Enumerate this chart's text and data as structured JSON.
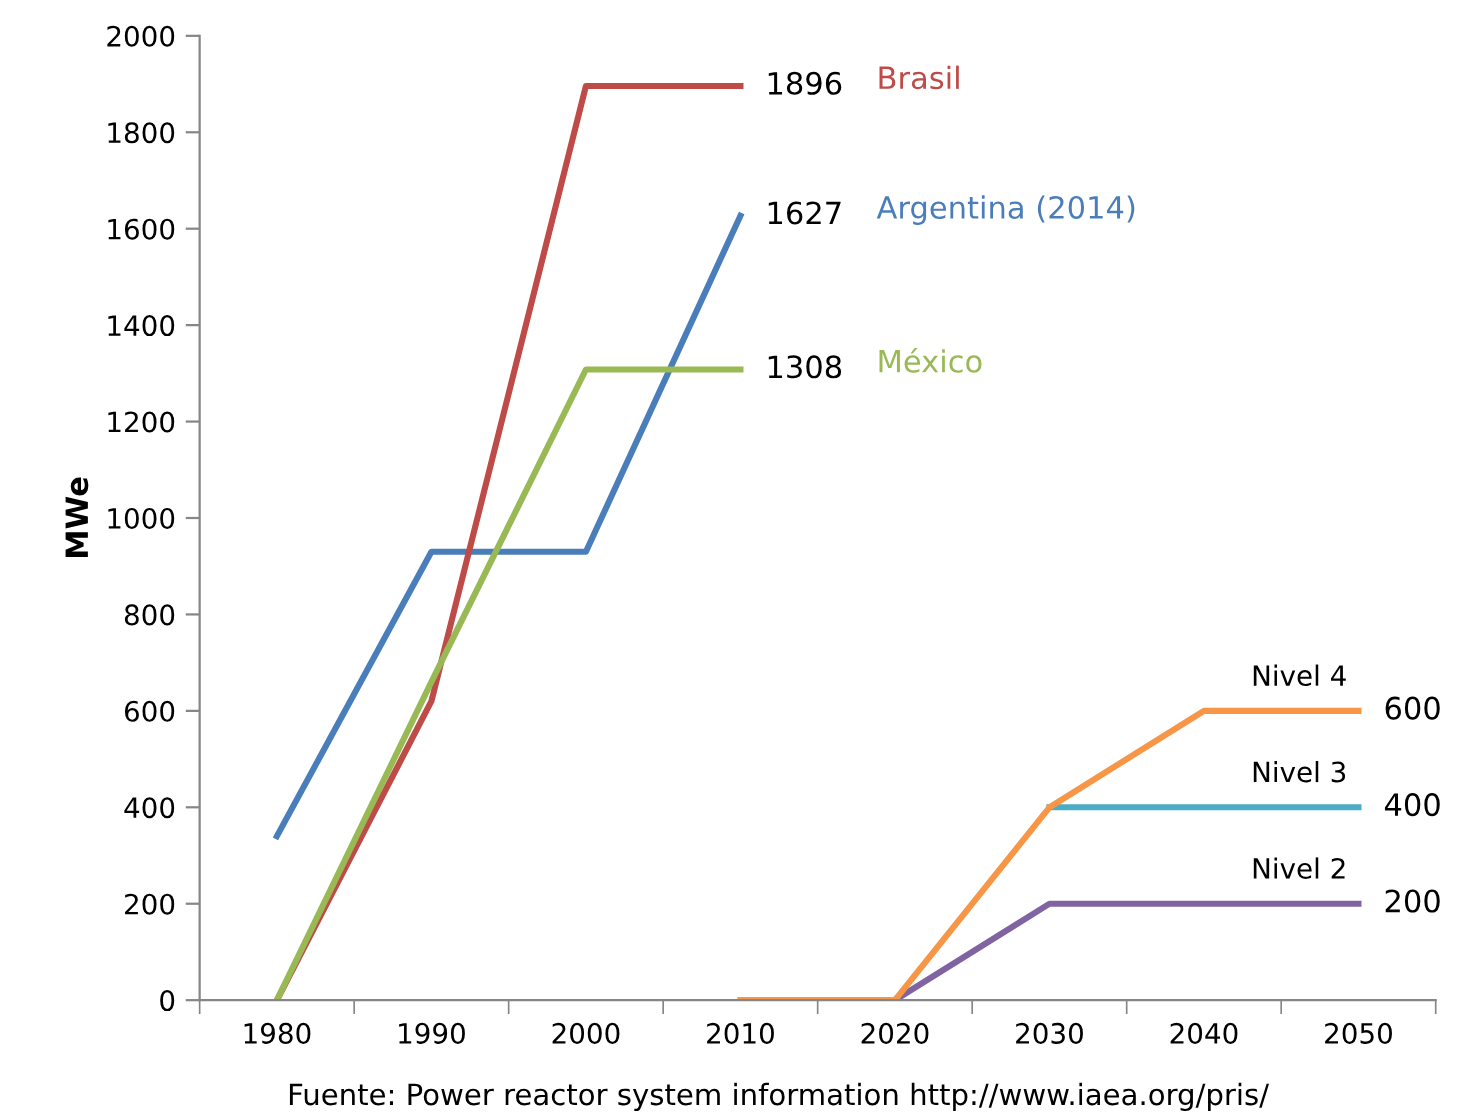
{
  "chart_data": {
    "type": "line",
    "ylabel": "MWe",
    "categories": [
      "1980",
      "1990",
      "2000",
      "2010",
      "2020",
      "2030",
      "2040",
      "2050"
    ],
    "series": [
      {
        "name": "Argentina (2014)",
        "color": "#4a7ebb",
        "values": [
          340,
          930,
          930,
          1627,
          null,
          null,
          null,
          null
        ],
        "value_labels": [
          null,
          null,
          null,
          "1627",
          null,
          null,
          null,
          null
        ]
      },
      {
        "name": "Brasil",
        "color": "#be4b48",
        "values": [
          0,
          620,
          1896,
          1896,
          null,
          null,
          null,
          null
        ],
        "value_labels": [
          null,
          null,
          null,
          "1896",
          null,
          null,
          null,
          null
        ]
      },
      {
        "name": "México",
        "color": "#98b954",
        "values": [
          0,
          660,
          1308,
          1308,
          null,
          null,
          null,
          null
        ],
        "value_labels": [
          null,
          null,
          null,
          "1308",
          null,
          null,
          null,
          null
        ]
      },
      {
        "name": "Nivel 3",
        "color": "#4bacc6",
        "values": [
          null,
          null,
          null,
          null,
          null,
          400,
          400,
          400
        ],
        "value_labels": [
          null,
          null,
          null,
          null,
          null,
          null,
          null,
          "400"
        ]
      },
      {
        "name": "Nivel 2",
        "color": "#8064a2",
        "values": [
          null,
          null,
          null,
          null,
          0,
          200,
          200,
          200
        ],
        "value_labels": [
          null,
          null,
          null,
          null,
          null,
          null,
          null,
          "200"
        ]
      },
      {
        "name": "Nivel 4",
        "color": "#f79646",
        "values": [
          null,
          null,
          null,
          0,
          0,
          400,
          600,
          600
        ],
        "value_labels": [
          null,
          null,
          null,
          null,
          null,
          null,
          null,
          "600"
        ]
      }
    ],
    "ylim": [
      0,
      2000
    ],
    "yticks": [
      0,
      200,
      400,
      600,
      800,
      1000,
      1200,
      1400,
      1600,
      1800,
      2000
    ],
    "grid": false,
    "legend": false,
    "marker": "none",
    "line_style": "solid",
    "annotations": [
      "Fuente: Power reactor system information http://www.iaea.org/pris/"
    ]
  }
}
